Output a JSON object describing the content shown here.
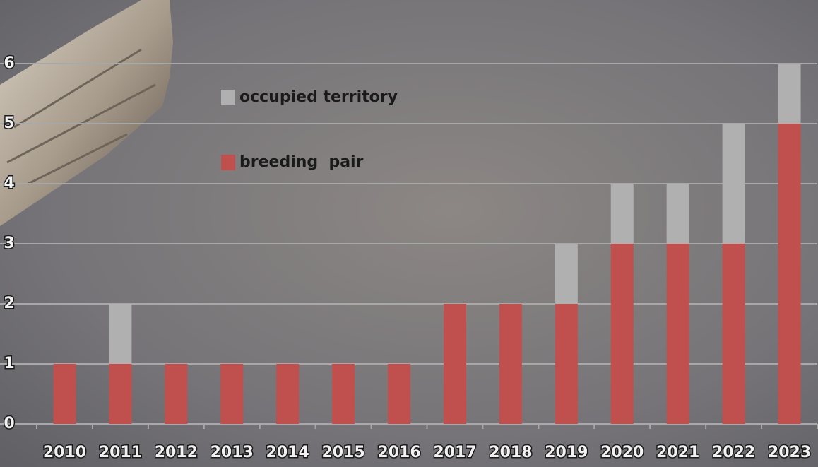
{
  "chart_data": {
    "type": "stacked-bar",
    "categories": [
      "2010",
      "2011",
      "2012",
      "2013",
      "2014",
      "2015",
      "2016",
      "2017",
      "2018",
      "2019",
      "2020",
      "2021",
      "2022",
      "2023"
    ],
    "series": [
      {
        "name": "breeding  pair",
        "color": "#c0504d",
        "values": [
          1,
          1,
          1,
          1,
          1,
          1,
          1,
          2,
          2,
          2,
          3,
          3,
          3,
          5
        ]
      },
      {
        "name": "occupied territory",
        "color": "#b0b0b0",
        "values": [
          0,
          1,
          0,
          0,
          0,
          0,
          0,
          0,
          0,
          1,
          1,
          1,
          2,
          1
        ]
      }
    ],
    "ylim": [
      0,
      6
    ],
    "yticks": [
      0,
      1,
      2,
      3,
      4,
      5,
      6
    ],
    "grid": true
  }
}
